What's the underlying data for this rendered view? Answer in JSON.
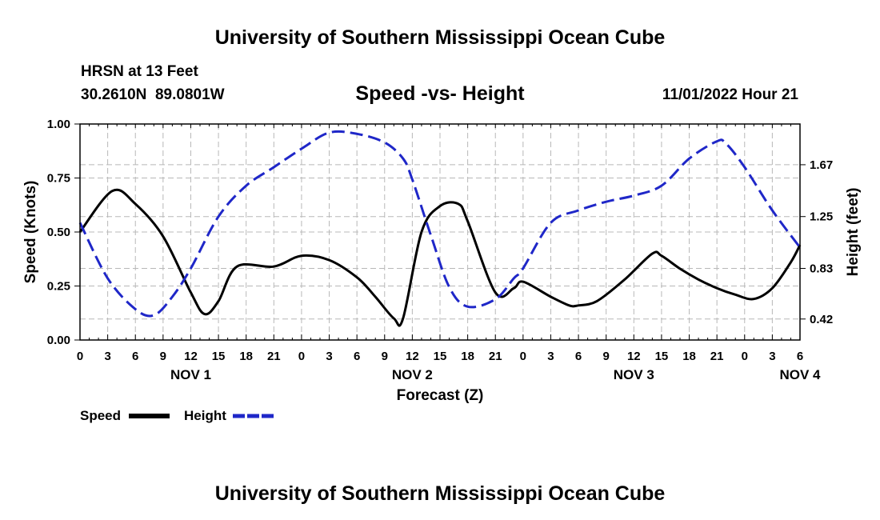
{
  "chart_data": {
    "type": "line",
    "title": "University of Southern Mississippi Ocean Cube",
    "subtitle": "Speed -vs- Height",
    "station": "HRSN at 13 Feet",
    "coords": "30.2610N  89.0801W",
    "datetime": "11/01/2022 Hour 21",
    "xlabel": "Forecast (Z)",
    "ylabel_left": "Speed (Knots)",
    "ylabel_right": "Height (feet)",
    "footer_title": "University of Southern Mississippi Ocean Cube",
    "x_range": [
      0,
      78
    ],
    "ylim_left": [
      0,
      1.0
    ],
    "ylim_right": [
      0.25,
      2.0
    ],
    "left_ticks": [
      {
        "v": 0.0,
        "label": "0.00"
      },
      {
        "v": 0.25,
        "label": "0.25"
      },
      {
        "v": 0.5,
        "label": "0.50"
      },
      {
        "v": 0.75,
        "label": "0.75"
      },
      {
        "v": 1.0,
        "label": "1.00"
      }
    ],
    "right_ticks": [
      {
        "v": 0.42,
        "label": "0.42"
      },
      {
        "v": 0.83,
        "label": "0.83"
      },
      {
        "v": 1.25,
        "label": "1.25"
      },
      {
        "v": 1.67,
        "label": "1.67"
      }
    ],
    "x_tick_labels": [
      "0",
      "3",
      "6",
      "9",
      "12",
      "15",
      "18",
      "21",
      "0",
      "3",
      "6",
      "9",
      "12",
      "15",
      "18",
      "21",
      "0",
      "3",
      "6",
      "9",
      "12",
      "15",
      "18",
      "21",
      "0",
      "3",
      "6"
    ],
    "day_labels": [
      {
        "h": 12,
        "label": "NOV 1"
      },
      {
        "h": 36,
        "label": "NOV 2"
      },
      {
        "h": 60,
        "label": "NOV 3"
      },
      {
        "h": 78,
        "label": "NOV 4"
      }
    ],
    "series": [
      {
        "name": "Speed",
        "axis": "left",
        "color": "#000000",
        "style": "solid",
        "x": [
          0,
          3.5,
          6,
          9,
          12,
          13.5,
          15,
          17,
          21,
          24,
          27,
          30,
          32,
          34,
          35,
          37,
          39,
          41,
          42,
          45,
          47,
          48,
          51,
          53,
          54,
          56,
          59,
          62,
          63,
          65,
          67,
          69,
          71,
          73,
          75,
          77,
          78
        ],
        "values": [
          0.5,
          0.69,
          0.63,
          0.48,
          0.22,
          0.12,
          0.18,
          0.34,
          0.34,
          0.39,
          0.37,
          0.29,
          0.2,
          0.1,
          0.1,
          0.5,
          0.62,
          0.63,
          0.55,
          0.22,
          0.24,
          0.27,
          0.2,
          0.16,
          0.16,
          0.18,
          0.28,
          0.4,
          0.39,
          0.33,
          0.28,
          0.24,
          0.21,
          0.19,
          0.24,
          0.36,
          0.44
        ]
      },
      {
        "name": "Height",
        "axis": "right",
        "color": "#1f27c8",
        "style": "dashed",
        "x": [
          0,
          3,
          6,
          8,
          10,
          12,
          15,
          18,
          21,
          24,
          27,
          30,
          33,
          35,
          36,
          38,
          40,
          42,
          45,
          47,
          48,
          51,
          54,
          57,
          60,
          63,
          66,
          69,
          70,
          72,
          75,
          78
        ],
        "values": [
          1.2,
          0.75,
          0.5,
          0.45,
          0.6,
          0.83,
          1.25,
          1.5,
          1.65,
          1.8,
          1.93,
          1.92,
          1.85,
          1.72,
          1.55,
          1.1,
          0.68,
          0.52,
          0.58,
          0.75,
          0.83,
          1.2,
          1.3,
          1.37,
          1.42,
          1.5,
          1.72,
          1.86,
          1.84,
          1.65,
          1.3,
          1.0
        ]
      }
    ],
    "legend": [
      {
        "label": "Speed",
        "color": "#000000",
        "style": "solid"
      },
      {
        "label": "Height",
        "color": "#1f27c8",
        "style": "dashed"
      }
    ]
  }
}
